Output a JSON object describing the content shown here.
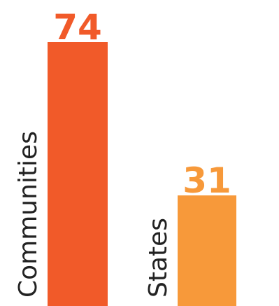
{
  "chart_data": {
    "type": "bar",
    "categories": [
      "Communities",
      "States"
    ],
    "values": [
      74,
      31
    ],
    "colors": [
      "#f15a29",
      "#f7993a"
    ],
    "title": "",
    "xlabel": "",
    "ylabel": "",
    "ylim": [
      0,
      74
    ],
    "grid": false,
    "legend": "none"
  }
}
